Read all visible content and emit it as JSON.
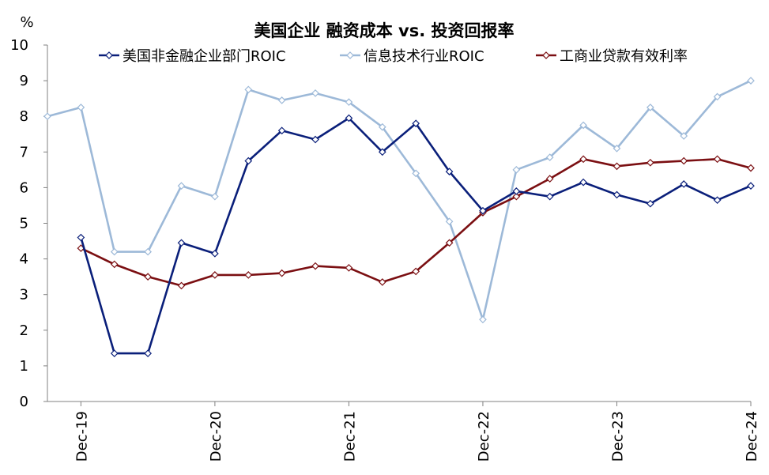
{
  "chart_data": {
    "type": "line",
    "title": "美国企业 融资成本 vs. 投资回报率",
    "ylabel": "%",
    "ylim": [
      0,
      10
    ],
    "yticks": [
      "0",
      "1",
      "2",
      "3",
      "4",
      "5",
      "6",
      "7",
      "8",
      "9",
      "10"
    ],
    "x_tick_labels": [
      "Dec-19",
      "Dec-20",
      "Dec-21",
      "Dec-22",
      "Dec-23",
      "Dec-24"
    ],
    "x": [
      "Sep-19",
      "Dec-19",
      "Mar-20",
      "Jun-20",
      "Sep-20",
      "Dec-20",
      "Mar-21",
      "Jun-21",
      "Sep-21",
      "Dec-21",
      "Mar-22",
      "Jun-22",
      "Sep-22",
      "Dec-22",
      "Mar-23",
      "Jun-23",
      "Sep-23",
      "Dec-23",
      "Mar-24",
      "Jun-24",
      "Sep-24",
      "Dec-24"
    ],
    "series": [
      {
        "name": "美国非金融企业部门ROIC",
        "color": "#0a1f7a",
        "values": [
          null,
          4.6,
          1.35,
          1.35,
          4.45,
          4.15,
          6.75,
          7.6,
          7.35,
          7.95,
          7.0,
          7.8,
          6.45,
          5.35,
          5.9,
          5.75,
          6.15,
          5.8,
          5.55,
          6.1,
          5.65,
          6.05
        ]
      },
      {
        "name": "信息技术行业ROIC",
        "color": "#9db9d8",
        "values": [
          8.0,
          8.25,
          4.2,
          4.2,
          6.05,
          5.75,
          8.75,
          8.45,
          8.65,
          8.4,
          7.7,
          6.4,
          5.05,
          2.3,
          6.5,
          6.85,
          7.75,
          7.1,
          8.25,
          7.45,
          8.55,
          9.0
        ]
      },
      {
        "name": "工商业贷款有效利率",
        "color": "#7b0f12",
        "values": [
          null,
          4.3,
          3.85,
          3.5,
          3.25,
          3.55,
          3.55,
          3.6,
          3.8,
          3.75,
          3.35,
          3.65,
          4.45,
          5.3,
          5.75,
          6.25,
          6.8,
          6.6,
          6.7,
          6.75,
          6.8,
          6.55
        ]
      }
    ],
    "grid": false,
    "legend_position": "top"
  }
}
